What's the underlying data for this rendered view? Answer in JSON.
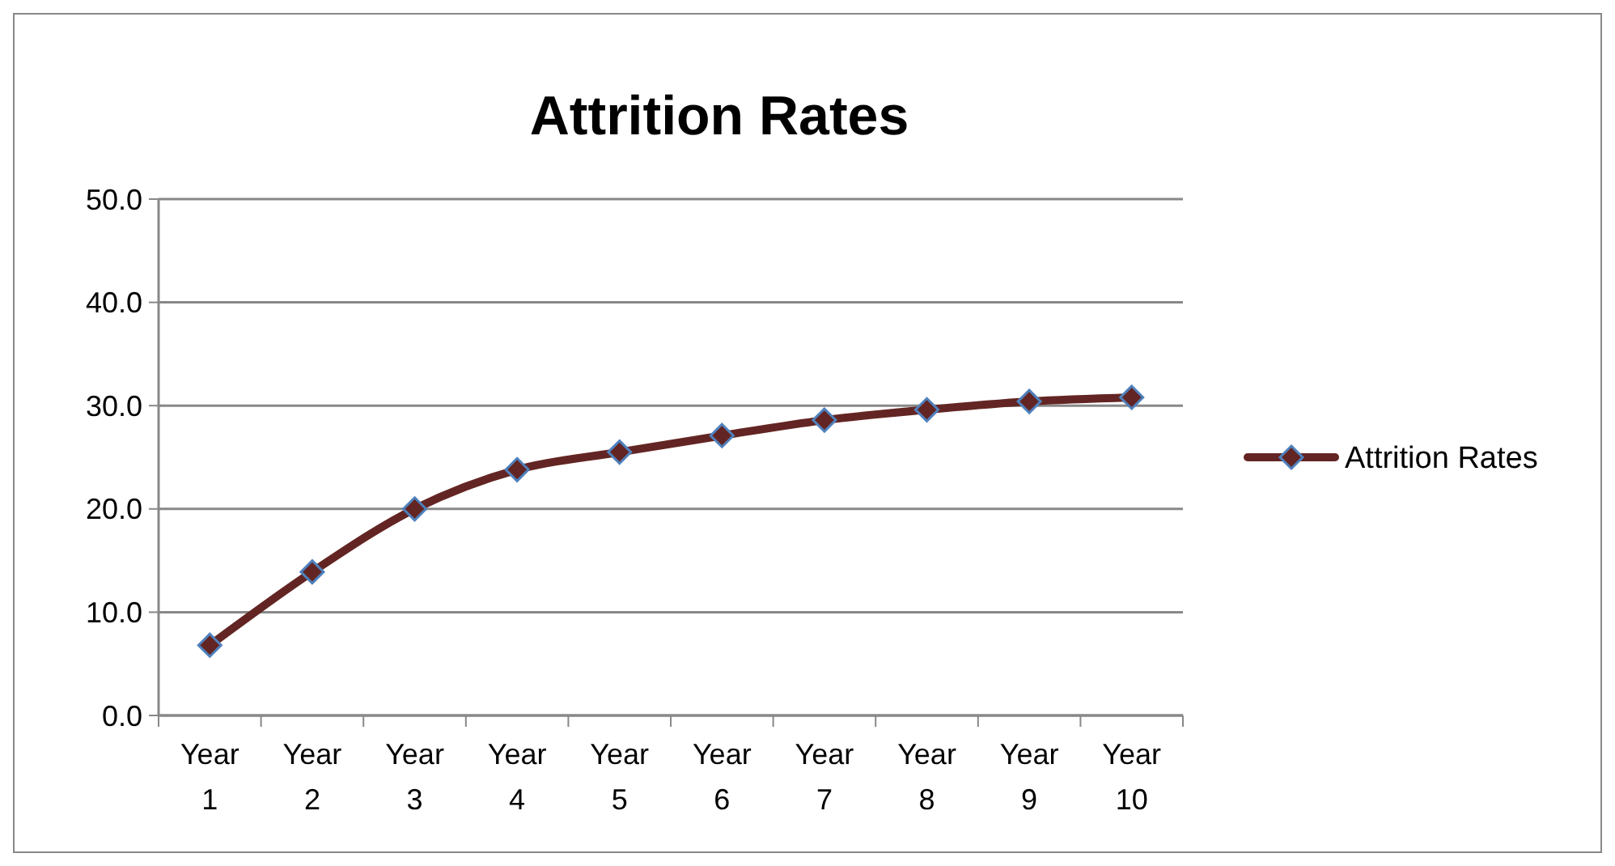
{
  "chart_data": {
    "type": "line",
    "title": "Attrition Rates",
    "categories": [
      "Year 1",
      "Year 2",
      "Year 3",
      "Year 4",
      "Year 5",
      "Year 6",
      "Year 7",
      "Year 8",
      "Year 9",
      "Year 10"
    ],
    "series": [
      {
        "name": "Attrition Rates",
        "color": "#632523",
        "values": [
          6.8,
          13.9,
          20.0,
          23.8,
          25.5,
          27.1,
          28.6,
          29.6,
          30.4,
          30.8
        ]
      }
    ],
    "ylim": [
      0,
      50
    ],
    "yticks": [
      {
        "value": 0,
        "label": "0.0"
      },
      {
        "value": 10,
        "label": "10.0"
      },
      {
        "value": 20,
        "label": "20.0"
      },
      {
        "value": 30,
        "label": "30.0"
      },
      {
        "value": 40,
        "label": "40.0"
      },
      {
        "value": 50,
        "label": "50.0"
      }
    ],
    "grid": "y",
    "legend": "right",
    "marker": "diamond",
    "line_style": "solid"
  }
}
